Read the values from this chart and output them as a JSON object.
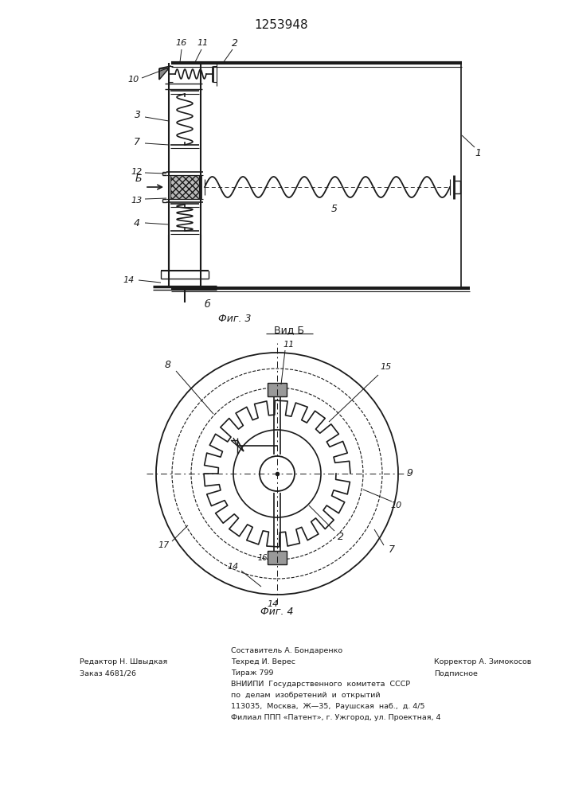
{
  "title": "1253948",
  "fig3_label": "Фиг. 3",
  "fig4_label": "Фиг. 4",
  "vid_b_label": "Вид Б",
  "arrow_b_label": "Б",
  "label_b6": "б",
  "background_color": "#ffffff",
  "line_color": "#1a1a1a",
  "footer_left1": "Редактор Н. Швыдкая",
  "footer_left2": "Заказ 4681/26",
  "footer_center1": "Составитель А. Бондаренко",
  "footer_center2": "Техред И. Верес",
  "footer_center3": "Тираж 799",
  "footer_center4": "ВНИИПИ  Государственного  комитета  СССР",
  "footer_center5": "по  делам  изобретений  и  открытий",
  "footer_center6": "113035,  Москва,  Ж—35,  Раушская  наб.,  д. 4/5",
  "footer_center7": "Филиал ППП «Патент», г. Ужгород, ул. Проектная, 4",
  "footer_right1": "Корректор А. Зимокосов",
  "footer_right2": "Подписное"
}
